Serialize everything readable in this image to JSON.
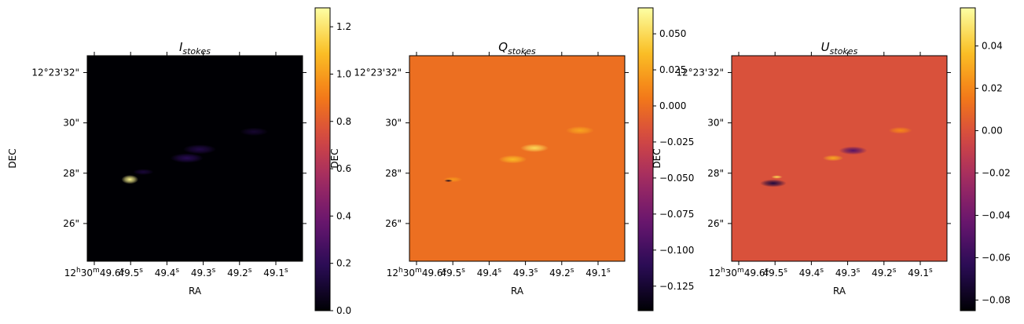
{
  "chart_data": [
    {
      "type": "heatmap",
      "title": "I",
      "title_subscript": "stokes",
      "xlabel": "RA",
      "ylabel": "DEC",
      "x_ticks": [
        {
          "v": 0,
          "h": "12",
          "m": "30",
          "s": "49.6",
          "sfx": "s"
        },
        {
          "v": 1,
          "s": "49.5",
          "sfx": "s"
        },
        {
          "v": 2,
          "s": "49.4",
          "sfx": "s"
        },
        {
          "v": 3,
          "s": "49.3",
          "sfx": "s"
        },
        {
          "v": 4,
          "s": "49.2",
          "sfx": "s"
        },
        {
          "v": 5,
          "s": "49.1",
          "sfx": "s"
        }
      ],
      "y_ticks": [
        {
          "v": 32,
          "label": "12°23'32\""
        },
        {
          "v": 30,
          "label": "30\""
        },
        {
          "v": 28,
          "label": "28\""
        },
        {
          "v": 26,
          "label": "26\""
        }
      ],
      "colorbar": {
        "cmap": "inferno",
        "range": [
          0.0,
          1.28
        ],
        "ticks": [
          0.0,
          0.2,
          0.4,
          0.6,
          0.8,
          1.0,
          1.2
        ],
        "tick_labels": [
          "0.0",
          "0.2",
          "0.4",
          "0.6",
          "0.8",
          "1.0",
          "1.2"
        ]
      },
      "background_value": 0.0,
      "features": [
        {
          "kind": "point_source",
          "ra_pos": 0.98,
          "dec": 27.75,
          "peak": 1.25,
          "size": 0.18
        },
        {
          "kind": "blob",
          "ra_pos": 1.35,
          "dec": 28.05,
          "peak": 0.12,
          "size": 0.22
        },
        {
          "kind": "blob",
          "ra_pos": 2.55,
          "dec": 28.6,
          "peak": 0.18,
          "size": 0.35
        },
        {
          "kind": "blob",
          "ra_pos": 2.9,
          "dec": 28.95,
          "peak": 0.15,
          "size": 0.35
        },
        {
          "kind": "blob",
          "ra_pos": 4.4,
          "dec": 29.65,
          "peak": 0.1,
          "size": 0.3
        }
      ]
    },
    {
      "type": "heatmap",
      "title": "Q",
      "title_subscript": "stokes",
      "xlabel": "RA",
      "ylabel": "DEC",
      "x_ticks": [
        {
          "v": 0,
          "h": "12",
          "m": "30",
          "s": "49.6",
          "sfx": "s"
        },
        {
          "v": 1,
          "s": "49.5",
          "sfx": "s"
        },
        {
          "v": 2,
          "s": "49.4",
          "sfx": "s"
        },
        {
          "v": 3,
          "s": "49.3",
          "sfx": "s"
        },
        {
          "v": 4,
          "s": "49.2",
          "sfx": "s"
        },
        {
          "v": 5,
          "s": "49.1",
          "sfx": "s"
        }
      ],
      "y_ticks": [
        {
          "v": 32,
          "label": "12°23'32\""
        },
        {
          "v": 30,
          "label": "30\""
        },
        {
          "v": 28,
          "label": "28\""
        },
        {
          "v": 26,
          "label": "26\""
        }
      ],
      "colorbar": {
        "cmap": "inferno",
        "range": [
          -0.142,
          0.068
        ],
        "ticks": [
          0.05,
          0.025,
          0.0,
          -0.025,
          -0.05,
          -0.075,
          -0.1,
          -0.125
        ],
        "tick_labels": [
          "0.050",
          "0.025",
          "0.000",
          "−0.025",
          "−0.050",
          "−0.075",
          "−0.100",
          "−0.125"
        ]
      },
      "background_value": 0.0,
      "features": [
        {
          "kind": "dipole_pos",
          "ra_pos": 1.0,
          "dec": 27.75,
          "peak": 0.02,
          "size": 0.2
        },
        {
          "kind": "dipole_neg",
          "ra_pos": 0.88,
          "dec": 27.7,
          "peak": -0.13,
          "size": 0.09
        },
        {
          "kind": "blob",
          "ra_pos": 2.65,
          "dec": 28.55,
          "peak": 0.035,
          "size": 0.3
        },
        {
          "kind": "blob",
          "ra_pos": 3.25,
          "dec": 29.0,
          "peak": 0.05,
          "size": 0.3
        },
        {
          "kind": "blob",
          "ra_pos": 4.5,
          "dec": 29.7,
          "peak": 0.025,
          "size": 0.3
        }
      ]
    },
    {
      "type": "heatmap",
      "title": "U",
      "title_subscript": "stokes",
      "xlabel": "RA",
      "ylabel": "DEC",
      "x_ticks": [
        {
          "v": 0,
          "h": "12",
          "m": "30",
          "s": "49.6",
          "sfx": "s"
        },
        {
          "v": 1,
          "s": "49.5",
          "sfx": "s"
        },
        {
          "v": 2,
          "s": "49.4",
          "sfx": "s"
        },
        {
          "v": 3,
          "s": "49.3",
          "sfx": "s"
        },
        {
          "v": 4,
          "s": "49.2",
          "sfx": "s"
        },
        {
          "v": 5,
          "s": "49.1",
          "sfx": "s"
        }
      ],
      "y_ticks": [
        {
          "v": 32,
          "label": "12°23'32\""
        },
        {
          "v": 30,
          "label": "30\""
        },
        {
          "v": 28,
          "label": "28\""
        },
        {
          "v": 26,
          "label": "26\""
        }
      ],
      "colorbar": {
        "cmap": "inferno",
        "range": [
          -0.085,
          0.058
        ],
        "ticks": [
          0.04,
          0.02,
          0.0,
          -0.02,
          -0.04,
          -0.06,
          -0.08
        ],
        "tick_labels": [
          "0.04",
          "0.02",
          "0.00",
          "−0.02",
          "−0.04",
          "−0.06",
          "−0.08"
        ]
      },
      "background_value": 0.0,
      "features": [
        {
          "kind": "dipole_neg",
          "ra_pos": 0.95,
          "dec": 27.6,
          "peak": -0.07,
          "size": 0.28
        },
        {
          "kind": "dipole_pos",
          "ra_pos": 1.05,
          "dec": 27.85,
          "peak": 0.045,
          "size": 0.12
        },
        {
          "kind": "blob",
          "ra_pos": 2.6,
          "dec": 28.6,
          "peak": 0.03,
          "size": 0.22
        },
        {
          "kind": "blob",
          "ra_pos": 3.15,
          "dec": 28.9,
          "peak": -0.05,
          "size": 0.3
        },
        {
          "kind": "blob",
          "ra_pos": 4.45,
          "dec": 29.7,
          "peak": 0.02,
          "size": 0.25
        }
      ]
    }
  ]
}
